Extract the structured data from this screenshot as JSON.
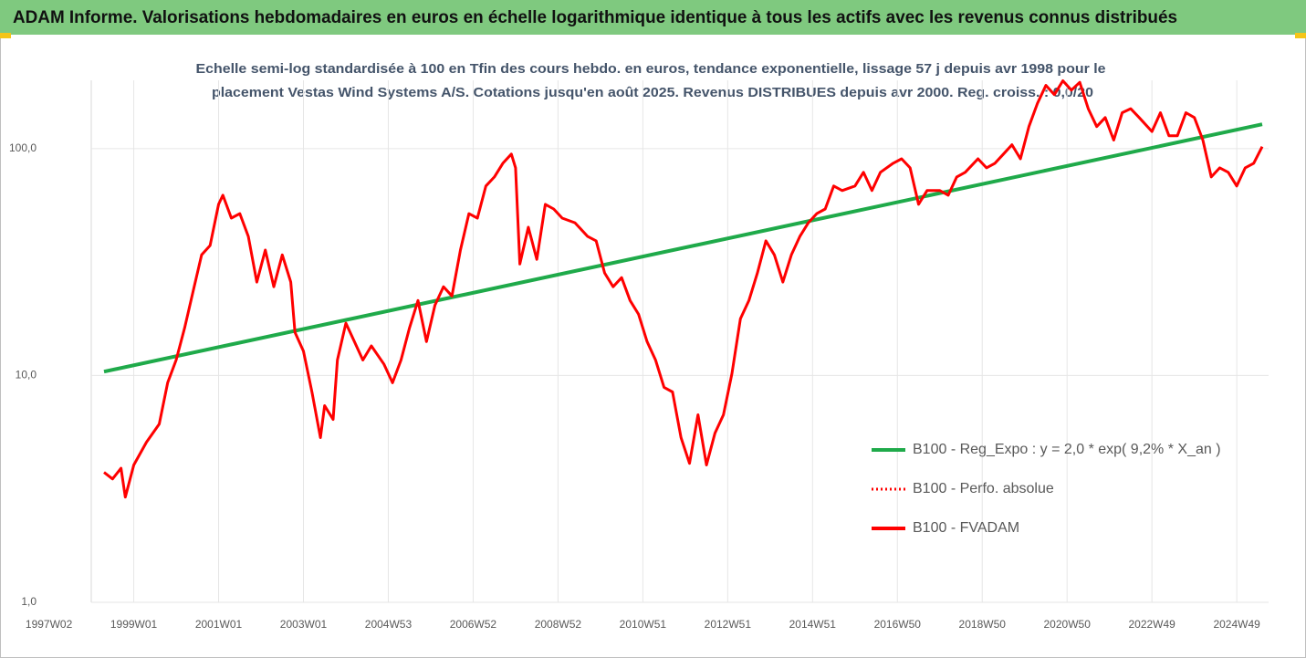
{
  "chart_data": {
    "type": "line",
    "title": "ADAM Informe. Valorisations hebdomadaires en euros en échelle logarithmique identique à tous les actifs avec les revenus connus distribués",
    "subtitle": [
      "Echelle semi-log standardisée à 100 en Tfin des cours hebdo. en euros, tendance exponentielle, lissage 57 j depuis avr 1998 pour le",
      "placement Vestas Wind Systems A/S. Cotations jusqu'en août 2025. Revenus DISTRIBUES depuis avr 2000. Reg. croiss. : 0,0/20"
    ],
    "log_y": true,
    "grid": true,
    "legend": "lower right",
    "xlim": [
      1996.6,
      2025.75
    ],
    "xticks": [
      {
        "value": 1997.0,
        "label": "1997W02"
      },
      {
        "value": 1999.0,
        "label": "1999W01"
      },
      {
        "value": 2001.0,
        "label": "2001W01"
      },
      {
        "value": 2003.0,
        "label": "2003W01"
      },
      {
        "value": 2005.0,
        "label": "2004W53"
      },
      {
        "value": 2007.0,
        "label": "2006W52"
      },
      {
        "value": 2009.0,
        "label": "2008W52"
      },
      {
        "value": 2011.0,
        "label": "2010W51"
      },
      {
        "value": 2013.0,
        "label": "2012W51"
      },
      {
        "value": 2015.0,
        "label": "2014W51"
      },
      {
        "value": 2017.0,
        "label": "2016W50"
      },
      {
        "value": 2019.0,
        "label": "2018W50"
      },
      {
        "value": 2021.0,
        "label": "2020W50"
      },
      {
        "value": 2023.0,
        "label": "2022W49"
      },
      {
        "value": 2025.0,
        "label": "2024W49"
      }
    ],
    "ylim": [
      1,
      200
    ],
    "yticks": [
      {
        "value": 1,
        "label": "1,0"
      },
      {
        "value": 10,
        "label": "10,0"
      },
      {
        "value": 100,
        "label": "100,0"
      }
    ],
    "series": [
      {
        "name": "B100 - Reg_Expo : y = 2,0 * exp( 9,2% *  X_an )",
        "color": "#1faa4a",
        "style": "solid",
        "x": [
          1998.3,
          2025.6
        ],
        "values": [
          10.4,
          128
        ]
      },
      {
        "name": "B100 - Perfo. absolue",
        "color": "#ff0000",
        "style": "dotted"
      },
      {
        "name": "B100 - FVADAM",
        "color": "#ff0000",
        "style": "solid",
        "x": [
          1998.3,
          1998.5,
          1998.7,
          1998.8,
          1999.0,
          1999.3,
          1999.6,
          1999.8,
          2000.0,
          2000.2,
          2000.4,
          2000.6,
          2000.8,
          2001.0,
          2001.1,
          2001.3,
          2001.5,
          2001.7,
          2001.9,
          2002.1,
          2002.3,
          2002.5,
          2002.7,
          2002.8,
          2003.0,
          2003.2,
          2003.4,
          2003.5,
          2003.7,
          2003.8,
          2004.0,
          2004.2,
          2004.4,
          2004.6,
          2004.9,
          2005.1,
          2005.3,
          2005.5,
          2005.7,
          2005.9,
          2006.1,
          2006.3,
          2006.5,
          2006.7,
          2006.9,
          2007.1,
          2007.3,
          2007.5,
          2007.7,
          2007.9,
          2008.0,
          2008.1,
          2008.3,
          2008.5,
          2008.7,
          2008.9,
          2009.1,
          2009.4,
          2009.7,
          2009.9,
          2010.1,
          2010.3,
          2010.5,
          2010.7,
          2010.9,
          2011.1,
          2011.3,
          2011.5,
          2011.7,
          2011.9,
          2012.1,
          2012.3,
          2012.5,
          2012.7,
          2012.9,
          2013.1,
          2013.3,
          2013.5,
          2013.7,
          2013.9,
          2014.1,
          2014.3,
          2014.5,
          2014.7,
          2014.9,
          2015.1,
          2015.3,
          2015.5,
          2015.7,
          2016.0,
          2016.2,
          2016.4,
          2016.6,
          2016.9,
          2017.1,
          2017.3,
          2017.5,
          2017.7,
          2018.0,
          2018.2,
          2018.4,
          2018.6,
          2018.9,
          2019.1,
          2019.3,
          2019.5,
          2019.7,
          2019.9,
          2020.1,
          2020.3,
          2020.5,
          2020.7,
          2020.9,
          2021.1,
          2021.3,
          2021.5,
          2021.7,
          2021.9,
          2022.1,
          2022.3,
          2022.5,
          2022.7,
          2023.0,
          2023.2,
          2023.4,
          2023.6,
          2023.8,
          2024.0,
          2024.2,
          2024.4,
          2024.6,
          2024.8,
          2025.0,
          2025.2,
          2025.4,
          2025.6
        ],
        "values": [
          3.74,
          3.5,
          3.9,
          2.91,
          4.03,
          5.08,
          6.11,
          9.29,
          11.7,
          16.2,
          23.5,
          34.0,
          37.4,
          56.8,
          62.3,
          49.4,
          51.7,
          41.0,
          25.8,
          35.7,
          24.6,
          34.0,
          25.8,
          15.5,
          12.8,
          8.46,
          5.32,
          7.36,
          6.4,
          11.7,
          17.0,
          14.1,
          11.7,
          13.5,
          11.2,
          9.29,
          11.7,
          16.2,
          21.4,
          14.1,
          20.4,
          24.6,
          22.4,
          35.7,
          51.7,
          49.4,
          68.4,
          75.0,
          86.2,
          94.6,
          82.3,
          31.0,
          45.0,
          32.5,
          56.8,
          54.2,
          49.4,
          47.1,
          41.0,
          39.2,
          28.3,
          24.6,
          27.0,
          21.4,
          18.6,
          14.1,
          11.7,
          8.87,
          8.46,
          5.32,
          4.1,
          6.71,
          4.03,
          5.57,
          6.71,
          10.2,
          17.8,
          21.4,
          28.3,
          39.2,
          34.0,
          25.8,
          34.0,
          41.0,
          47.1,
          51.7,
          54.2,
          68.4,
          65.3,
          68.4,
          78.6,
          65.3,
          78.6,
          86.2,
          90.2,
          82.3,
          56.8,
          65.3,
          65.3,
          62.3,
          75.0,
          78.6,
          90.2,
          82.3,
          86.2,
          94.6,
          104,
          90.2,
          125,
          158,
          190,
          173,
          199,
          181,
          196,
          150,
          125,
          137,
          109,
          144,
          150,
          137,
          119,
          144,
          114,
          114,
          144,
          137,
          109,
          75.0,
          82.3,
          78.6,
          68.4,
          82.3,
          86.2,
          102
        ]
      }
    ]
  }
}
